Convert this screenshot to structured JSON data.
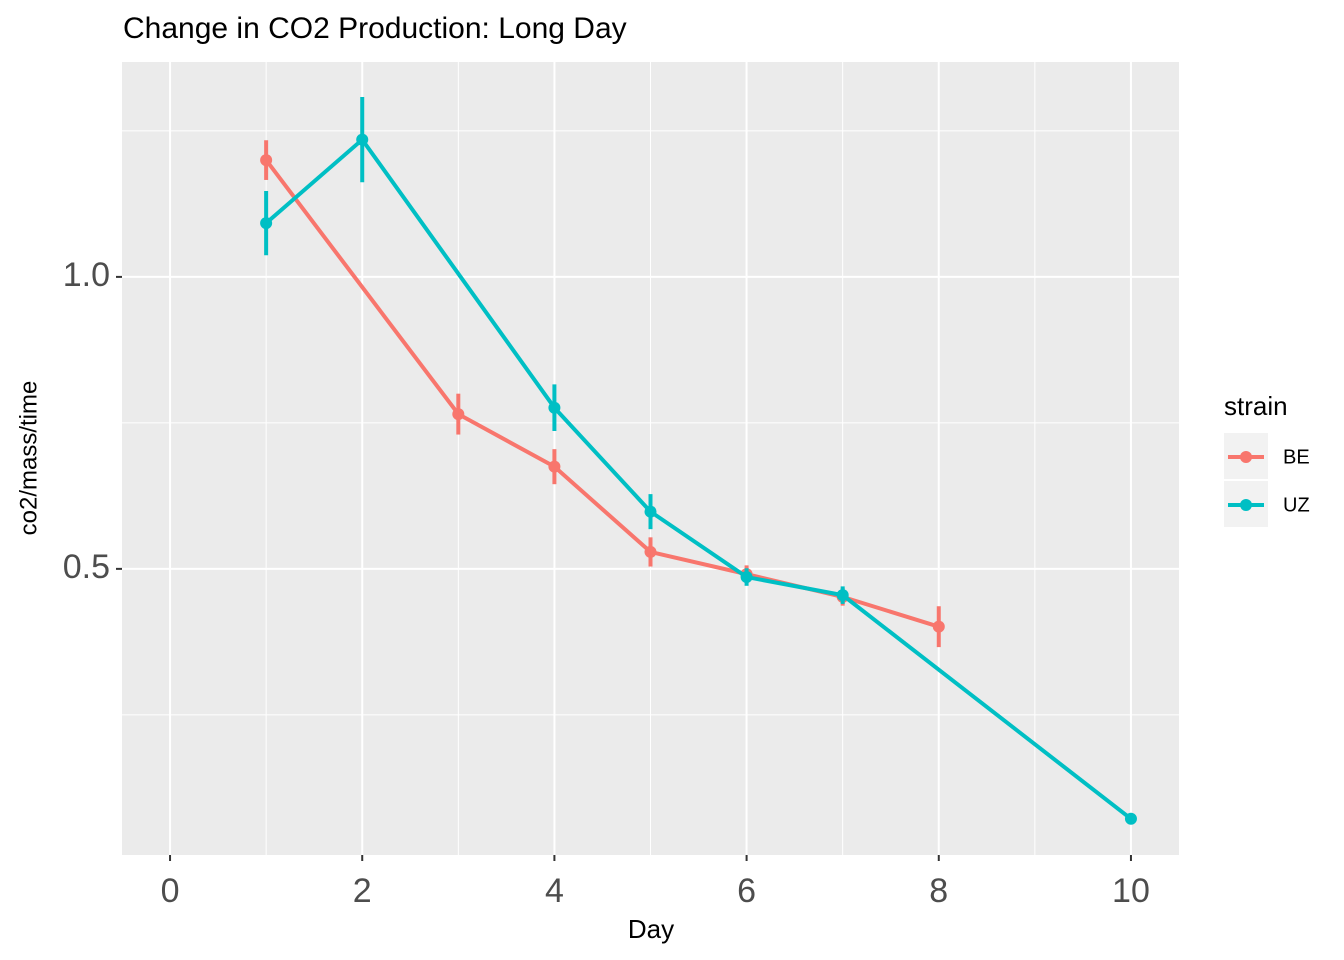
{
  "chart_data": {
    "type": "line",
    "title": "Change in CO2 Production: Long Day",
    "x_label": "Day",
    "y_label": "co2/mass/time",
    "legend_title": "strain",
    "xlim": [
      -0.5,
      10.5
    ],
    "xticks": [
      0,
      2,
      4,
      6,
      8,
      10
    ],
    "ylim": [
      0.01,
      1.368
    ],
    "yticks": [
      {
        "value": 0.5,
        "label": "0.5"
      },
      {
        "value": 1.0,
        "label": "1.0"
      }
    ],
    "grid": true,
    "legend_position": "right",
    "series": [
      {
        "name": "BE",
        "color": "#F8766D",
        "x": [
          1,
          3,
          4,
          5,
          6,
          7,
          8
        ],
        "values": [
          1.2,
          0.765,
          0.675,
          0.529,
          0.491,
          0.452,
          0.401
        ],
        "errors": [
          0.034,
          0.035,
          0.03,
          0.025,
          0.015,
          0.015,
          0.035
        ]
      },
      {
        "name": "UZ",
        "color": "#00BFC4",
        "x": [
          1,
          2,
          4,
          5,
          6,
          7,
          10
        ],
        "values": [
          1.092,
          1.235,
          0.776,
          0.598,
          0.486,
          0.455,
          0.072
        ],
        "errors": [
          0.055,
          0.073,
          0.04,
          0.03,
          0.015,
          0.015,
          0.004
        ]
      }
    ]
  }
}
